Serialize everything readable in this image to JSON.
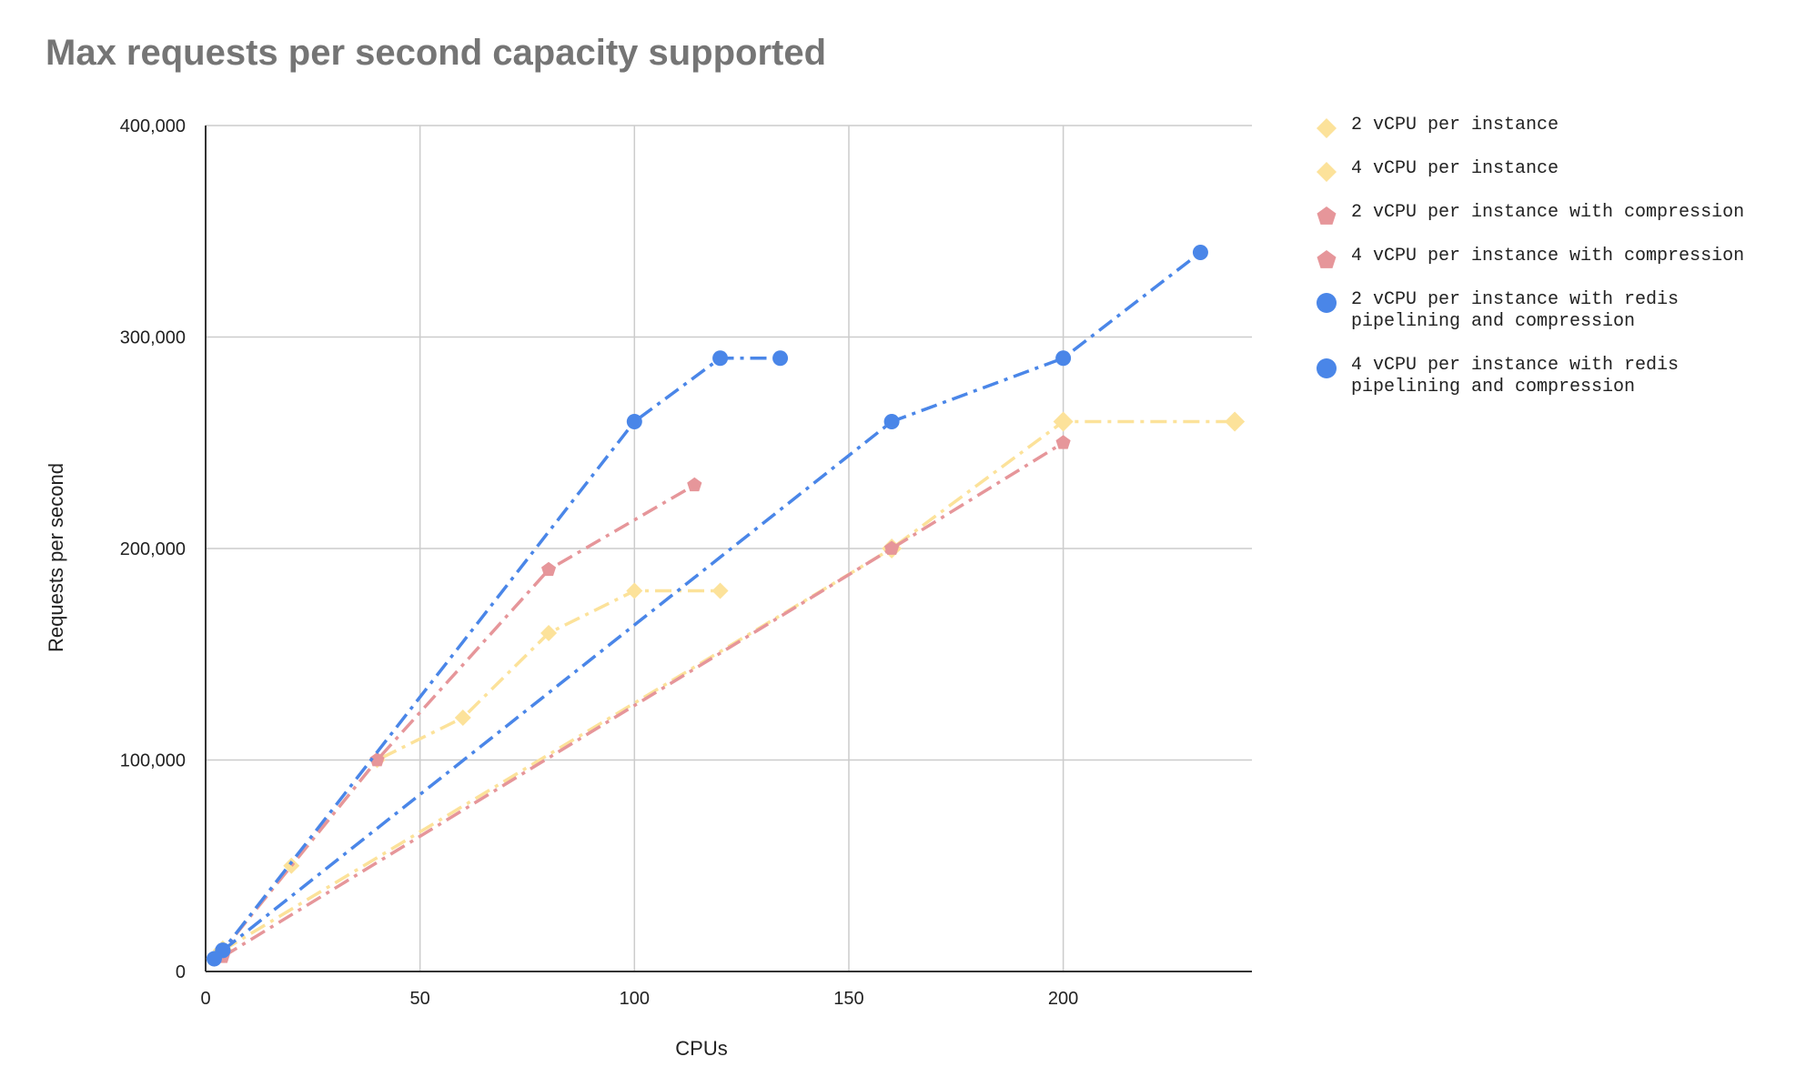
{
  "chart_data": {
    "type": "line",
    "title": "Max requests per second capacity supported",
    "xlabel": "CPUs",
    "ylabel": "Requests per second",
    "xlim": [
      0,
      244
    ],
    "ylim": [
      0,
      400000
    ],
    "xticks": [
      0,
      50,
      100,
      150,
      200
    ],
    "xtick_labels": [
      "0",
      "50",
      "100",
      "150",
      "200"
    ],
    "yticks": [
      0,
      100000,
      200000,
      300000,
      400000
    ],
    "ytick_labels": [
      "0",
      "100,000",
      "200,000",
      "300,000",
      "400,000"
    ],
    "grid": true,
    "legend_position": "right",
    "series": [
      {
        "name": "2 vCPU per instance",
        "color": "#FCE29A",
        "marker": "diamond",
        "x": [
          2,
          4,
          20,
          40,
          60,
          80,
          100,
          120
        ],
        "values": [
          6000,
          10000,
          50000,
          100000,
          120000,
          160000,
          180000,
          180000
        ]
      },
      {
        "name": "4 vCPU per instance",
        "color": "#FCE29A",
        "marker": "diamond",
        "x": [
          4,
          160,
          200,
          240
        ],
        "values": [
          10000,
          200000,
          260000,
          260000
        ]
      },
      {
        "name": "2 vCPU per instance with compression",
        "color": "#E6969A",
        "marker": "pentagon",
        "x": [
          2,
          4,
          40,
          80,
          114
        ],
        "values": [
          6000,
          10000,
          100000,
          190000,
          230000
        ]
      },
      {
        "name": "4 vCPU per instance with compression",
        "color": "#E6969A",
        "marker": "pentagon",
        "x": [
          4,
          160,
          200
        ],
        "values": [
          7000,
          200000,
          250000
        ]
      },
      {
        "name": "2 vCPU per instance with redis pipelining and compression",
        "color": "#4A86E8",
        "marker": "circle",
        "x": [
          2,
          4,
          100,
          120,
          134
        ],
        "values": [
          6000,
          10000,
          260000,
          290000,
          290000
        ]
      },
      {
        "name": "4 vCPU per instance with redis pipelining and compression",
        "color": "#4A86E8",
        "marker": "circle",
        "x": [
          4,
          160,
          200,
          232
        ],
        "values": [
          10000,
          260000,
          290000,
          340000
        ]
      }
    ]
  }
}
